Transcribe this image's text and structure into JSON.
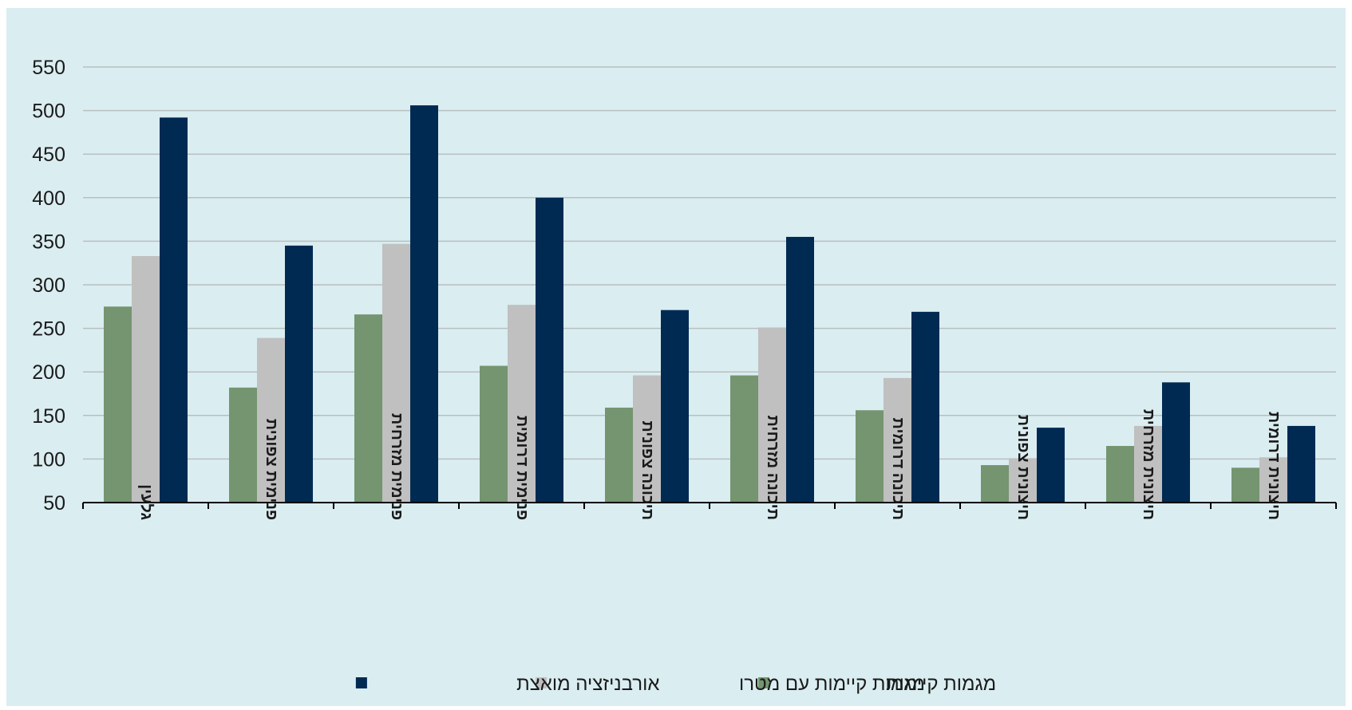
{
  "chart_data": {
    "type": "bar",
    "categories": [
      "גלעין",
      "פנימית צפונית",
      "פנימית מזרחית",
      "פנימית דרומית",
      "תיכונה צפונית",
      "תיכונה מזרחית",
      "תיכונה דרומית",
      "חיצונית צפונית",
      "חיצונית מזרחית",
      "חיצונית דרומית"
    ],
    "series": [
      {
        "name": "מגמות קיימות",
        "color": "#74956f",
        "values": [
          275,
          182,
          266,
          207,
          159,
          196,
          156,
          93,
          115,
          90
        ]
      },
      {
        "name": "מגמות קיימות עם מטרו",
        "color": "#c0c0c0",
        "values": [
          333,
          239,
          347,
          277,
          196,
          251,
          193,
          101,
          138,
          102
        ]
      },
      {
        "name": "אורבניזציה מואצת",
        "color": "#002a52",
        "values": [
          492,
          345,
          506,
          400,
          271,
          355,
          269,
          136,
          188,
          138
        ]
      }
    ],
    "yticks": [
      "50",
      "100",
      "150",
      "200",
      "250",
      "300",
      "350",
      "400",
      "450",
      "500",
      "550"
    ],
    "ylim": [
      50,
      550
    ],
    "grid": true,
    "legend_position": "bottom-center",
    "background_color": "#daedf1",
    "gridline_color": "#b9bfc1",
    "axis_color": "#000000"
  }
}
